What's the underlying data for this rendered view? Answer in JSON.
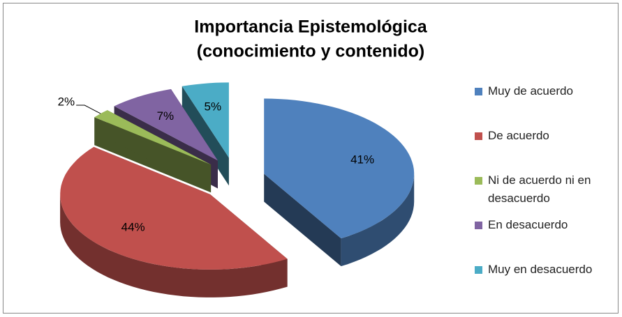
{
  "chart_data": {
    "type": "pie3d",
    "title": [
      "Importancia Epistemológica",
      "(conocimiento y contenido)"
    ],
    "categories": [
      "Muy de acuerdo",
      "De acuerdo",
      "Ni de acuerdo ni en desacuerdo",
      "En desacuerdo",
      "Muy en desacuerdo"
    ],
    "values": [
      41,
      44,
      2,
      7,
      5
    ],
    "value_labels": [
      "41%",
      "44%",
      "2%",
      "7%",
      "5%"
    ],
    "colors": [
      "#4f81bd",
      "#c0504d",
      "#9bbb59",
      "#8064a2",
      "#4bacc6"
    ],
    "legend": "right"
  }
}
